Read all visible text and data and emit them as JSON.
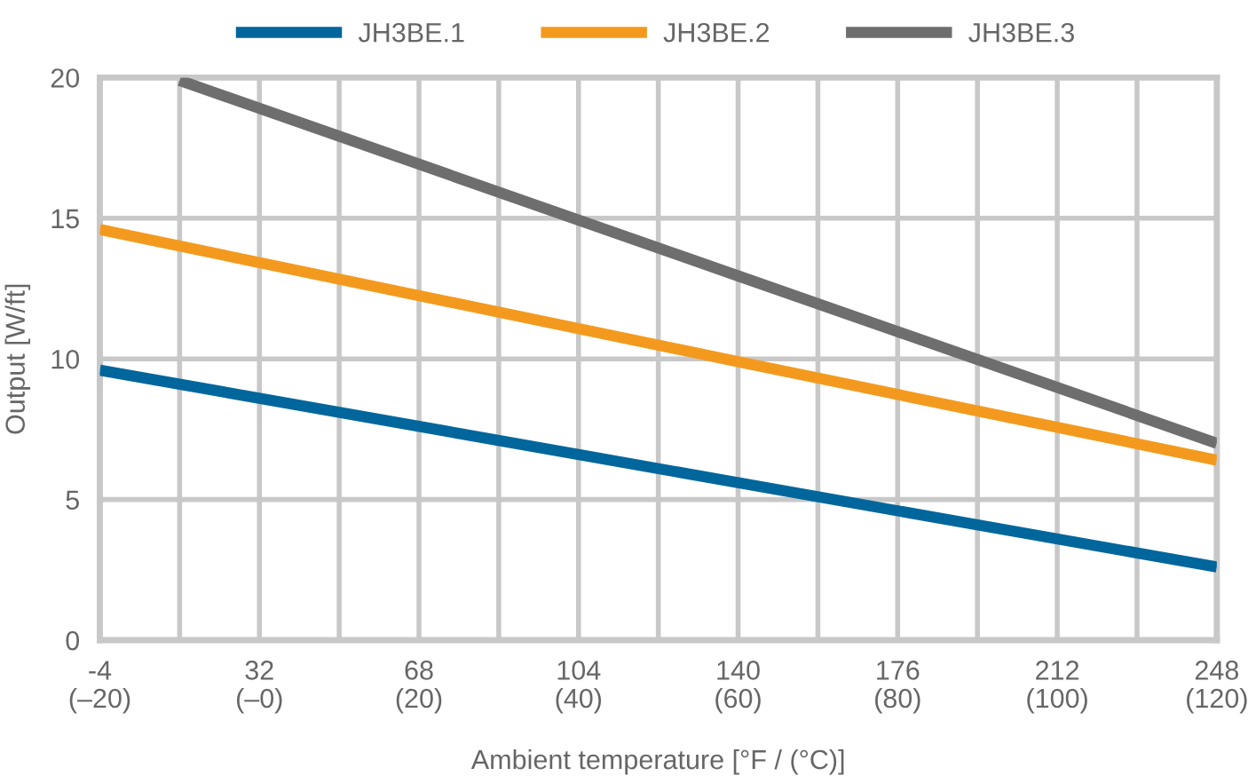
{
  "chart_data": {
    "type": "line",
    "xlabel": "Ambient temperature [°F / (°C)]",
    "ylabel": "Output [W/ft]",
    "series": [
      {
        "name": "JH3BE.1",
        "color": "#00669c",
        "x": [
          -4,
          140,
          248
        ],
        "values": [
          9.6,
          5.6,
          2.6
        ]
      },
      {
        "name": "JH3BE.2",
        "color": "#f39a1e",
        "x": [
          -4,
          140,
          248
        ],
        "values": [
          14.6,
          9.9,
          6.4
        ]
      },
      {
        "name": "JH3BE.3",
        "color": "#6e6e6e",
        "x": [
          14,
          140,
          248
        ],
        "values": [
          19.9,
          12.95,
          7.0
        ]
      }
    ],
    "xlim": [
      -4,
      248
    ],
    "ylim": [
      0,
      20
    ],
    "xticks": [
      -4,
      {
        "value": 14,
        "label": null
      },
      32,
      {
        "value": 50,
        "label": null
      },
      68,
      {
        "value": 86,
        "label": null
      },
      104,
      {
        "value": 122,
        "label": null
      },
      140,
      {
        "value": 158,
        "label": null
      },
      176,
      {
        "value": 194,
        "label": null
      },
      212,
      {
        "value": 230,
        "label": null
      },
      248
    ],
    "x2lim": [
      -20,
      120
    ],
    "x2ticks": [
      {
        "value": -20,
        "label": "(–20)"
      },
      {
        "value": 0,
        "label": "(–0)"
      },
      {
        "value": 20,
        "label": "(20)"
      },
      {
        "value": 40,
        "label": "(40)"
      },
      {
        "value": 60,
        "label": "(60)"
      },
      {
        "value": 80,
        "label": "(80)"
      },
      {
        "value": 100,
        "label": "(100)"
      },
      {
        "value": 120,
        "label": "(120)"
      }
    ],
    "yticks": [
      0,
      5,
      10,
      15,
      20
    ],
    "grid": true,
    "legend": "top",
    "marker": "none",
    "line_style": "solid"
  }
}
